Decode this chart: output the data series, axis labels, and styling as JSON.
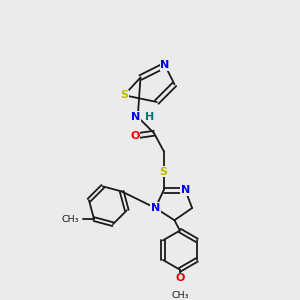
{
  "background_color": "#ebebeb",
  "bond_color": "#1a1a1a",
  "atom_colors": {
    "N": "#0000ee",
    "S": "#bbbb00",
    "O": "#ee0000",
    "H": "#007777"
  },
  "lw": 1.3,
  "fs": 8.0,
  "fs_small": 6.8
}
